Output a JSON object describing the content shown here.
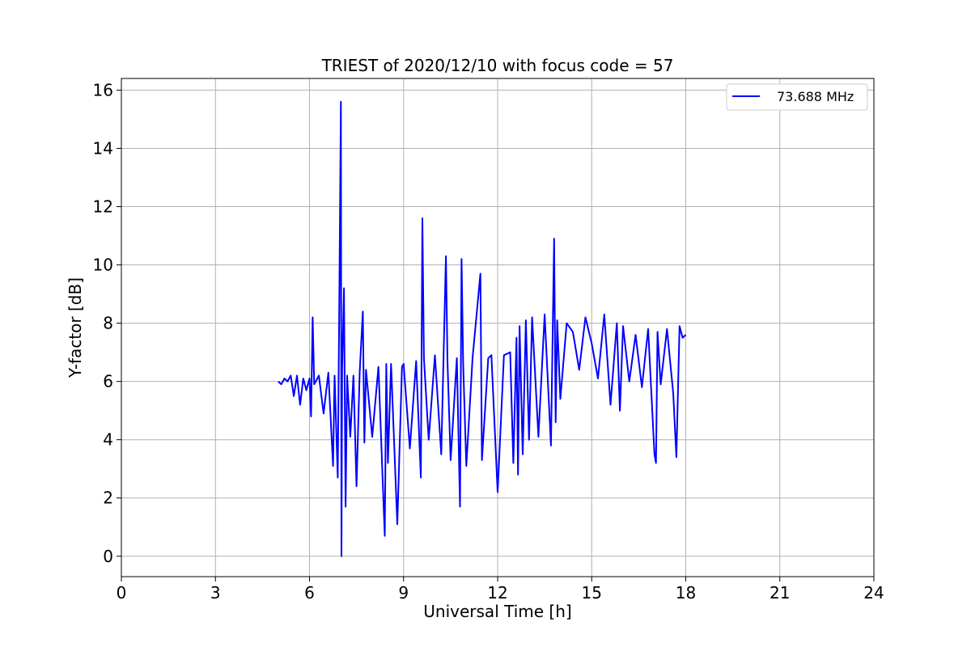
{
  "chart_data": {
    "type": "line",
    "title": "TRIEST of 2020/12/10 with focus code = 57",
    "xlabel": "Universal Time [h]",
    "ylabel": "Y-factor [dB]",
    "xlim": [
      0,
      24
    ],
    "ylim": [
      -0.7,
      16.4
    ],
    "xticks": [
      0,
      3,
      6,
      9,
      12,
      15,
      18,
      21,
      24
    ],
    "yticks": [
      0,
      2,
      4,
      6,
      8,
      10,
      12,
      14,
      16
    ],
    "grid": true,
    "legend_position": "top-right",
    "line_color": "#0000ff",
    "series": [
      {
        "name": "73.688 MHz",
        "color": "#0000ff",
        "x": [
          5.0,
          5.1,
          5.2,
          5.3,
          5.4,
          5.5,
          5.6,
          5.7,
          5.8,
          5.9,
          6.0,
          6.05,
          6.1,
          6.15,
          6.3,
          6.45,
          6.6,
          6.75,
          6.8,
          6.9,
          6.95,
          7.0,
          7.02,
          7.04,
          7.1,
          7.15,
          7.2,
          7.3,
          7.4,
          7.5,
          7.6,
          7.7,
          7.75,
          7.8,
          8.0,
          8.2,
          8.4,
          8.45,
          8.5,
          8.6,
          8.8,
          8.95,
          9.0,
          9.2,
          9.4,
          9.55,
          9.6,
          9.65,
          9.8,
          10.0,
          10.2,
          10.35,
          10.4,
          10.5,
          10.7,
          10.8,
          10.85,
          10.9,
          11.0,
          11.2,
          11.45,
          11.5,
          11.7,
          11.8,
          12.0,
          12.2,
          12.4,
          12.5,
          12.6,
          12.65,
          12.7,
          12.8,
          12.9,
          13.0,
          13.1,
          13.3,
          13.5,
          13.7,
          13.8,
          13.85,
          13.9,
          14.0,
          14.2,
          14.4,
          14.6,
          14.8,
          15.0,
          15.2,
          15.4,
          15.6,
          15.8,
          15.9,
          16.0,
          16.2,
          16.4,
          16.6,
          16.8,
          17.0,
          17.05,
          17.1,
          17.2,
          17.4,
          17.6,
          17.7,
          17.8,
          17.9,
          18.0
        ],
        "y": [
          6.0,
          5.9,
          6.1,
          6.0,
          6.2,
          5.5,
          6.2,
          5.2,
          6.1,
          5.7,
          6.1,
          4.8,
          8.2,
          5.9,
          6.2,
          4.9,
          6.3,
          3.1,
          6.2,
          2.7,
          8.7,
          15.6,
          0.0,
          6.4,
          9.2,
          1.7,
          6.2,
          4.1,
          6.2,
          2.4,
          6.3,
          8.4,
          3.9,
          6.4,
          4.1,
          6.5,
          0.7,
          6.6,
          3.2,
          6.6,
          1.1,
          6.5,
          6.6,
          3.7,
          6.7,
          2.7,
          11.6,
          6.8,
          4.0,
          6.9,
          3.5,
          10.3,
          6.7,
          3.3,
          6.8,
          1.7,
          10.2,
          6.6,
          3.1,
          6.8,
          9.7,
          3.3,
          6.8,
          6.9,
          2.2,
          6.9,
          7.0,
          3.2,
          7.5,
          2.8,
          7.9,
          3.5,
          8.1,
          4.0,
          8.2,
          4.1,
          8.3,
          3.8,
          10.9,
          4.6,
          8.1,
          5.4,
          8.0,
          7.7,
          6.4,
          8.2,
          7.3,
          6.1,
          8.3,
          5.2,
          8.0,
          5.0,
          7.9,
          6.0,
          7.6,
          5.8,
          7.8,
          3.5,
          3.2,
          7.7,
          5.9,
          7.8,
          5.6,
          3.4,
          7.9,
          7.5,
          7.6
        ]
      }
    ]
  }
}
